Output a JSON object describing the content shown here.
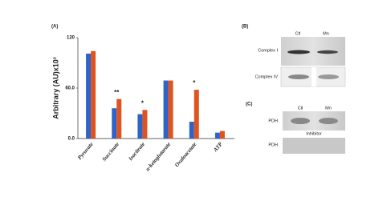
{
  "chart_data": {
    "type": "bar",
    "panel_label": "(A)",
    "ylabel": "Arbitrary (AU)x10³",
    "categories": [
      "Pyruvate",
      "Succinate",
      "Isocitrate",
      "α-ketoglutarate",
      "Oxaloacetate",
      "ATP"
    ],
    "series": [
      {
        "color": "#2e64c8",
        "values": [
          101,
          36,
          29,
          69,
          20,
          7
        ]
      },
      {
        "color": "#e0531e",
        "values": [
          104,
          47,
          34,
          69,
          58,
          9
        ]
      }
    ],
    "significance": [
      null,
      "**",
      "*",
      null,
      "*",
      null
    ],
    "ylim": [
      0,
      120
    ],
    "yticks": [
      {
        "value": 0,
        "label": "0.0"
      },
      {
        "value": 60,
        "label": "60.0"
      },
      120
    ]
  },
  "blots": {
    "panel_b": {
      "label": "(B)",
      "lanes": [
        "Ctl",
        "Mn"
      ],
      "rows": [
        "Complex I",
        "Complex IV"
      ]
    },
    "panel_c": {
      "label": "(C)",
      "lanes": [
        "Ctl",
        "Mn"
      ],
      "rows": [
        "PDH",
        "PDH"
      ],
      "note": "Inhibitor"
    }
  }
}
